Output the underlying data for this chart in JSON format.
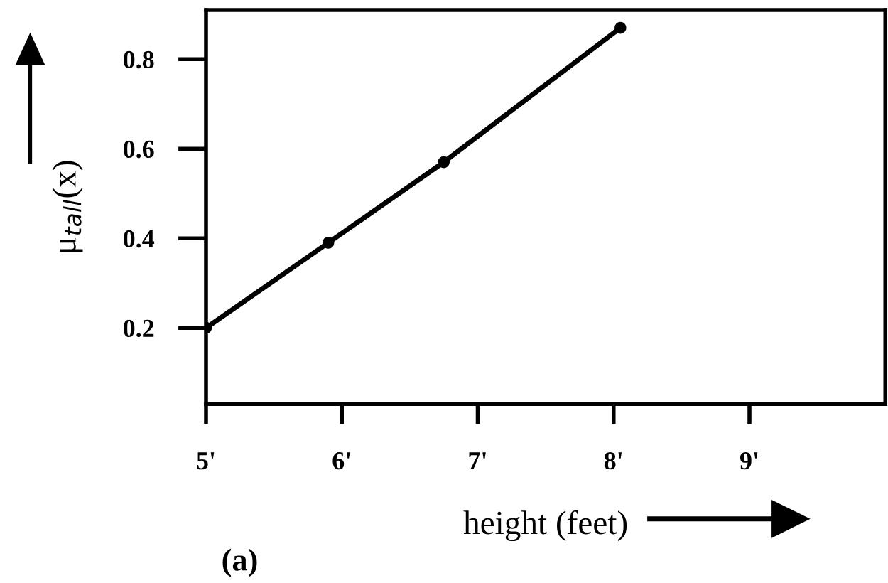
{
  "chart_data": {
    "type": "line",
    "xlabel": "height (feet)",
    "ylabel": "μ$_{tall}$(x)",
    "annotations": [
      "(a)"
    ],
    "x": [
      5,
      5.9,
      6.75,
      8.05
    ],
    "series": [
      {
        "color": "#000000",
        "values": [
          0.2,
          0.39,
          0.57,
          0.87
        ]
      }
    ],
    "xlim": [
      5,
      10
    ],
    "ylim": [
      0.03,
      0.91
    ],
    "xticks": [
      {
        "value": 5,
        "label": "5'"
      },
      {
        "value": 6,
        "label": "6'"
      },
      {
        "value": 7,
        "label": "7'"
      },
      {
        "value": 8,
        "label": "8'"
      },
      {
        "value": 9,
        "label": "9'"
      }
    ],
    "yticks": [
      0.2,
      0.4,
      0.6,
      0.8
    ],
    "grid": false,
    "legend": false,
    "marker": "circle",
    "line_style": "solid"
  }
}
